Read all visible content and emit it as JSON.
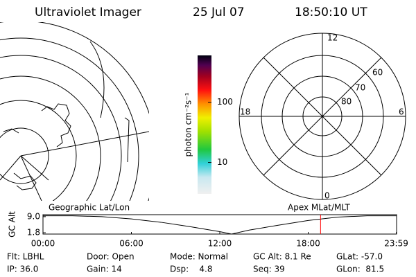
{
  "header": {
    "title": "Ultraviolet Imager",
    "date": "25 Jul 07",
    "time": "18:50:10 UT"
  },
  "colorbar": {
    "label": "photon cm⁻²s⁻¹",
    "log": true,
    "ylim": [
      3,
      600
    ],
    "ticks": [
      10,
      100
    ]
  },
  "polar_plot": {
    "mlt_labels": [
      12,
      18,
      6,
      0
    ],
    "lat_labels": [
      60,
      70,
      80
    ]
  },
  "chart_data": {
    "type": "line",
    "left_label": "Geographic Lat/Lon",
    "right_label": "Apex MLat/MLT",
    "ylabel": "GC Alt",
    "x": [
      0,
      2,
      4,
      6,
      8,
      10,
      12,
      12.8,
      14,
      16,
      18,
      20,
      22,
      24
    ],
    "values": [
      9.4,
      9.4,
      9.0,
      8.0,
      6.5,
      4.5,
      2.3,
      1.2,
      3.0,
      5.2,
      7.3,
      8.8,
      9.4,
      9.4
    ],
    "color": "#000000",
    "marker_x": 18.84,
    "marker_color": "#ff0000",
    "xlim": [
      0,
      24
    ],
    "ylim": [
      1.2,
      9.9
    ],
    "xticks": [
      {
        "value": 0,
        "label": "00:00"
      },
      {
        "value": 6,
        "label": "06:00"
      },
      {
        "value": 12,
        "label": "12:00"
      },
      {
        "value": 18,
        "label": "18:00"
      },
      {
        "value": 23.98,
        "label": "23:59"
      }
    ],
    "yticks": [
      {
        "value": 9,
        "label": "9.0"
      },
      1.8
    ]
  },
  "info": {
    "rows": [
      [
        "Flt: LBHL",
        "Door: Open",
        "Mode: Normal",
        "GC Alt: 8.1 Re",
        "GLat: -57.0"
      ],
      [
        "IP: 36.0",
        "Gain: 14",
        "Dsp:    4.8",
        "Seq: 39",
        "GLon:  81.5"
      ]
    ]
  }
}
